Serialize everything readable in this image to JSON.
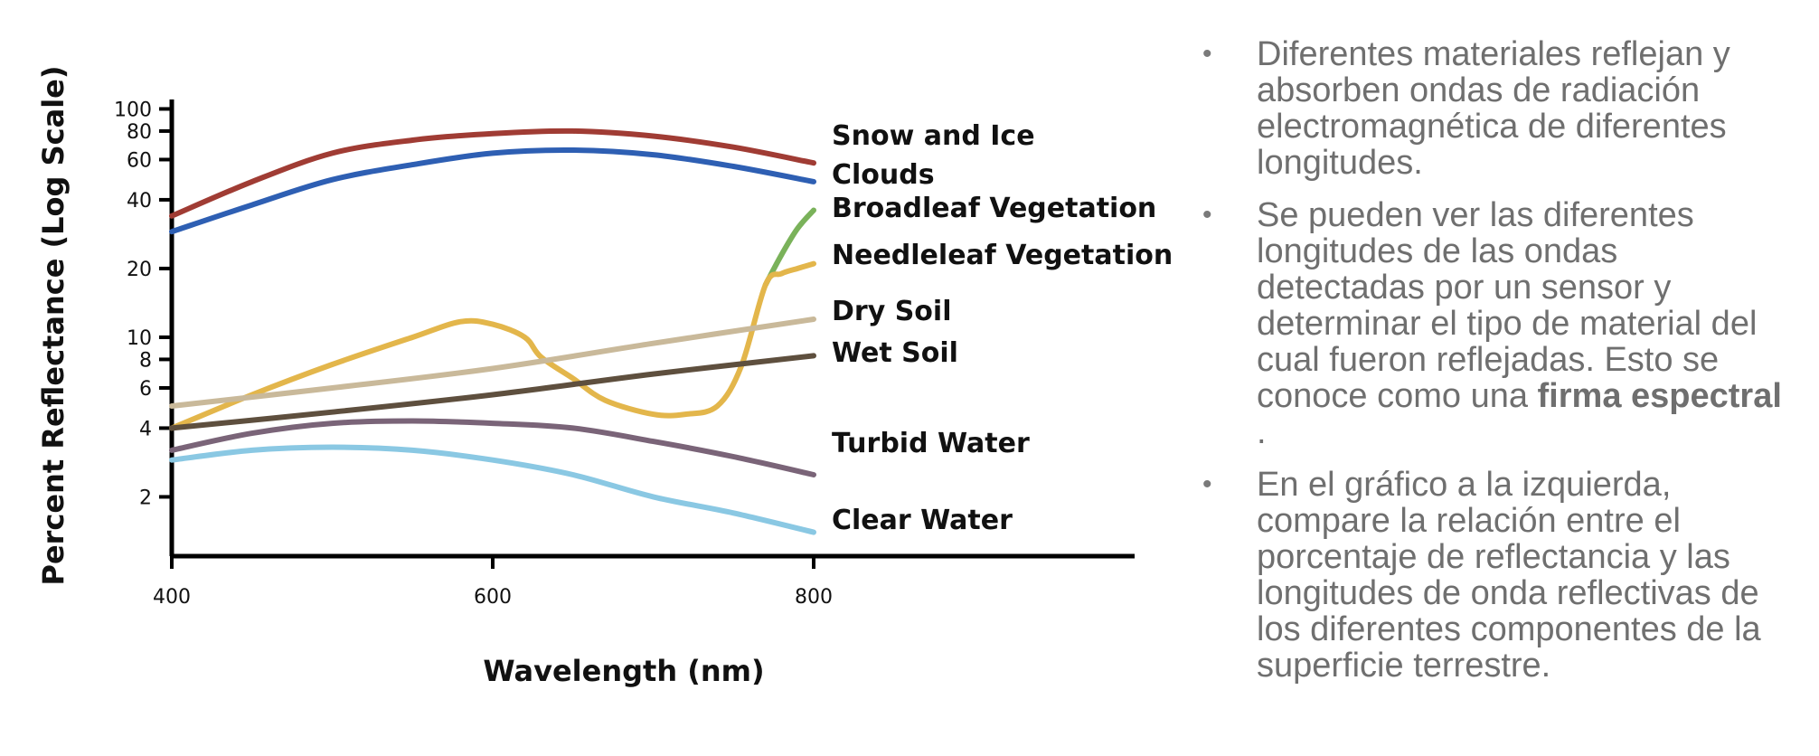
{
  "chart_data": {
    "type": "line",
    "xlabel": "Wavelength (nm)",
    "ylabel": "Percent Reflectance (Log Scale)",
    "xlim": [
      400,
      1000
    ],
    "ylim": [
      1.1,
      110
    ],
    "yscale": "log",
    "grid": false,
    "xticks": [
      400,
      600,
      800
    ],
    "yticks": [
      2,
      4,
      6,
      8,
      10,
      20,
      40,
      60,
      80,
      100
    ],
    "series": [
      {
        "name": "Snow and Ice",
        "color": "#a03c34",
        "x": [
          400,
          450,
          500,
          550,
          600,
          650,
          700,
          750,
          800
        ],
        "y": [
          34,
          48,
          64,
          73,
          78,
          80,
          76,
          68,
          58
        ]
      },
      {
        "name": "Clouds",
        "color": "#2e5fb3",
        "x": [
          400,
          450,
          500,
          550,
          600,
          650,
          700,
          750,
          800
        ],
        "y": [
          29,
          38,
          49,
          57,
          64,
          66,
          63,
          56,
          48
        ]
      },
      {
        "name": "Broadleaf Vegetation",
        "color": "#7ab25a",
        "x": [
          770,
          780,
          790,
          800
        ],
        "y": [
          17,
          23,
          30,
          36
        ]
      },
      {
        "name": "Needleleaf Vegetation",
        "color": "#e3b64b",
        "x": [
          400,
          450,
          500,
          550,
          580,
          600,
          620,
          630,
          650,
          670,
          700,
          720,
          740,
          755,
          770,
          780,
          790,
          800
        ],
        "y": [
          4,
          5.6,
          7.6,
          10,
          11.7,
          11.4,
          10,
          8.2,
          6.6,
          5.3,
          4.6,
          4.6,
          5,
          7.5,
          17,
          19,
          20,
          21
        ]
      },
      {
        "name": "Dry Soil",
        "color": "#c9b99a",
        "x": [
          400,
          500,
          600,
          700,
          800
        ],
        "y": [
          5,
          6,
          7.3,
          9.4,
          12
        ]
      },
      {
        "name": "Wet Soil",
        "color": "#5e4f3e",
        "x": [
          400,
          500,
          600,
          700,
          800
        ],
        "y": [
          4,
          4.7,
          5.6,
          6.9,
          8.3
        ]
      },
      {
        "name": "Turbid Water",
        "color": "#7a6478",
        "x": [
          400,
          450,
          500,
          550,
          600,
          650,
          700,
          750,
          800
        ],
        "y": [
          3.2,
          3.8,
          4.2,
          4.3,
          4.2,
          4.0,
          3.5,
          3.0,
          2.5
        ]
      },
      {
        "name": "Clear Water",
        "color": "#8ac8e3",
        "x": [
          400,
          450,
          500,
          550,
          600,
          650,
          700,
          750,
          800
        ],
        "y": [
          2.9,
          3.2,
          3.3,
          3.2,
          2.9,
          2.5,
          2.0,
          1.7,
          1.4
        ]
      }
    ]
  },
  "notes": [
    {
      "text": "Diferentes materiales reflejan y absorben ondas de radiación electromagnética de diferentes longitudes."
    },
    {
      "text": "Se pueden ver las diferentes longitudes de las ondas detectadas por un sensor y determinar el tipo de material del cual fueron reflejadas. Esto se conoce como una ",
      "bold": "firma espectral",
      "after": " ."
    },
    {
      "text": "En el gráfico a la izquierda, compare la relación entre el porcentaje de reflectancia y las longitudes de onda reflectivas de los diferentes componentes de la superficie terrestre."
    }
  ],
  "bullet_symbol": "•"
}
